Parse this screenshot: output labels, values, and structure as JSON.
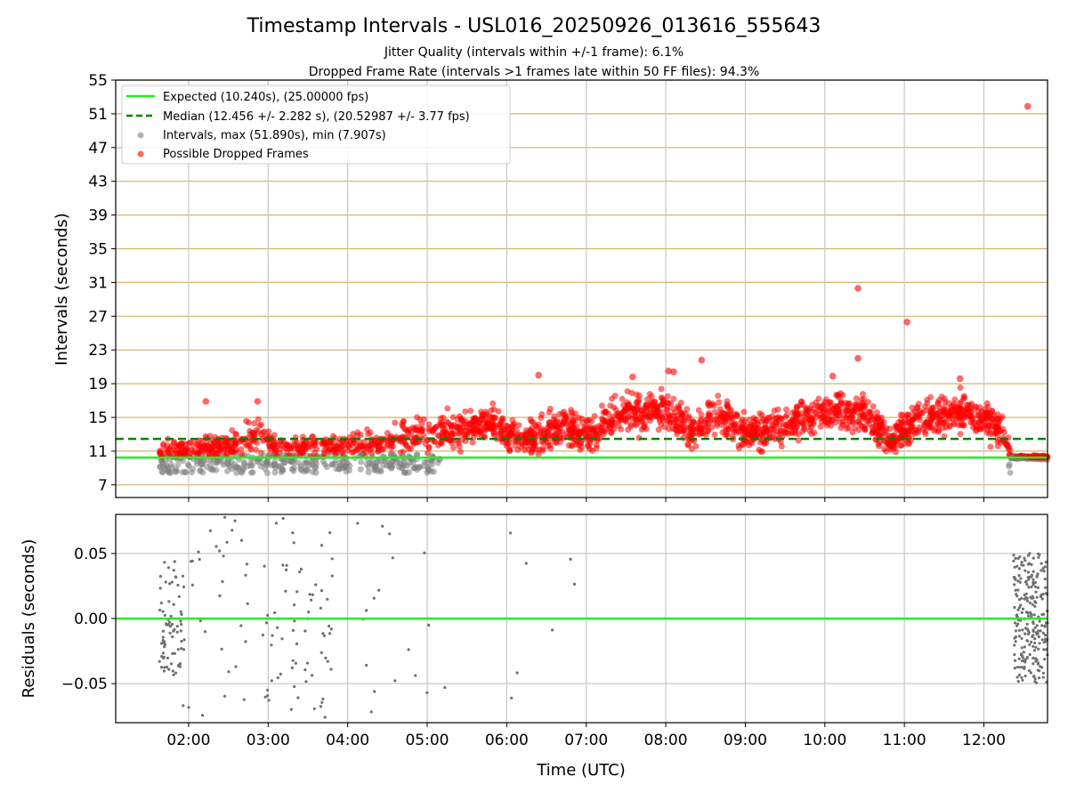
{
  "chart_data": [
    {
      "type": "scatter",
      "title": "Timestamp Intervals - USL016_20250926_013616_555643",
      "subtitle_line1": "Jitter Quality (intervals within +/-1 frame): 6.1%",
      "subtitle_line2": "Dropped Frame Rate (intervals >1 frames late within 50 FF files): 94.3%",
      "ylabel": "Intervals (seconds)",
      "xlim": [
        "01:05",
        "12:48"
      ],
      "ylim": [
        5.5,
        55
      ],
      "y_ticks": [
        "7",
        "11",
        "15",
        "19",
        "23",
        "27",
        "31",
        "35",
        "39",
        "43",
        "47",
        "51",
        "55"
      ],
      "x_ticks": [
        "02:00",
        "03:00",
        "04:00",
        "05:00",
        "06:00",
        "07:00",
        "08:00",
        "09:00",
        "10:00",
        "11:00",
        "12:00"
      ],
      "grid": true,
      "legend_position": "top-left",
      "expected_value": 10.24,
      "median_value": 12.456,
      "legend": [
        {
          "label": "Expected (10.240s), (25.00000 fps)",
          "color": "#22ee22",
          "style": "solid-line"
        },
        {
          "label": "Median (12.456 +/- 2.282 s), (20.52987 +/- 3.77 fps)",
          "color": "#008000",
          "style": "dashed-line"
        },
        {
          "label": "Intervals, max (51.890s), min (7.907s)",
          "color": "#808080",
          "style": "marker"
        },
        {
          "label": "Possible Dropped Frames",
          "color": "#ff0000",
          "style": "marker"
        }
      ],
      "trend": [
        {
          "t": "01:40",
          "y": 10.8
        },
        {
          "t": "02:30",
          "y": 11.5
        },
        {
          "t": "02:50",
          "y": 13.0
        },
        {
          "t": "03:10",
          "y": 11.2
        },
        {
          "t": "04:00",
          "y": 11.5
        },
        {
          "t": "04:40",
          "y": 12.5
        },
        {
          "t": "05:20",
          "y": 13.5
        },
        {
          "t": "05:50",
          "y": 14.5
        },
        {
          "t": "06:10",
          "y": 12.0
        },
        {
          "t": "06:40",
          "y": 14.0
        },
        {
          "t": "07:00",
          "y": 13.0
        },
        {
          "t": "07:30",
          "y": 15.5
        },
        {
          "t": "08:00",
          "y": 16.0
        },
        {
          "t": "08:20",
          "y": 13.5
        },
        {
          "t": "08:40",
          "y": 15.5
        },
        {
          "t": "09:00",
          "y": 13.0
        },
        {
          "t": "09:30",
          "y": 14.0
        },
        {
          "t": "10:00",
          "y": 15.5
        },
        {
          "t": "10:30",
          "y": 15.5
        },
        {
          "t": "10:50",
          "y": 12.0
        },
        {
          "t": "11:10",
          "y": 15.0
        },
        {
          "t": "11:40",
          "y": 15.5
        },
        {
          "t": "12:10",
          "y": 14.5
        },
        {
          "t": "12:20",
          "y": 10.3
        },
        {
          "t": "12:48",
          "y": 10.2
        }
      ],
      "outliers": [
        {
          "t": "12:33",
          "y": 51.9
        },
        {
          "t": "10:25",
          "y": 30.3
        },
        {
          "t": "11:02",
          "y": 26.3
        },
        {
          "t": "10:25",
          "y": 22.0
        },
        {
          "t": "08:27",
          "y": 21.8
        },
        {
          "t": "08:02",
          "y": 20.5
        },
        {
          "t": "08:06",
          "y": 20.4
        },
        {
          "t": "06:24",
          "y": 20.0
        },
        {
          "t": "07:35",
          "y": 19.8
        },
        {
          "t": "10:06",
          "y": 19.9
        },
        {
          "t": "11:42",
          "y": 19.6
        },
        {
          "t": "02:13",
          "y": 16.9
        },
        {
          "t": "02:52",
          "y": 16.9
        }
      ]
    },
    {
      "type": "scatter",
      "title": "",
      "xlabel": "Time (UTC)",
      "ylabel": "Residuals (seconds)",
      "xlim": [
        "01:05",
        "12:48"
      ],
      "ylim": [
        -0.08,
        0.08
      ],
      "y_ticks": [
        "0.05",
        "0.00",
        "−0.05"
      ],
      "y_tick_values": [
        0.05,
        0.0,
        -0.05
      ],
      "zero_line_color": "#22ee22",
      "marker_color": "#707070",
      "clusters": [
        {
          "from": "01:38",
          "to": "01:55",
          "n": 70,
          "spread": 0.045
        },
        {
          "from": "01:55",
          "to": "02:45",
          "n": 35,
          "spread": 0.08
        },
        {
          "from": "02:55",
          "to": "03:50",
          "n": 70,
          "spread": 0.08
        },
        {
          "from": "03:50",
          "to": "05:30",
          "n": 18,
          "spread": 0.08
        },
        {
          "from": "06:00",
          "to": "07:05",
          "n": 7,
          "spread": 0.07
        },
        {
          "from": "12:22",
          "to": "12:48",
          "n": 230,
          "spread": 0.05
        }
      ]
    }
  ]
}
